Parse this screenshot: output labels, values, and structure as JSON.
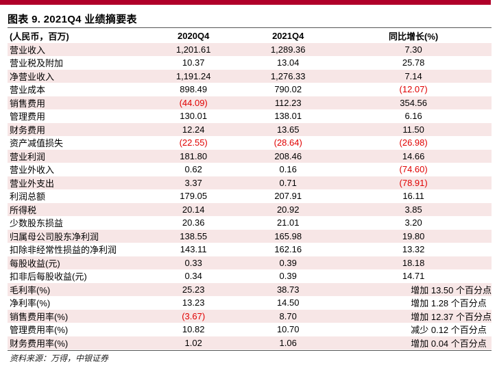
{
  "title": "图表 9. 2021Q4 业绩摘要表",
  "colors": {
    "brand": "#b0002a",
    "shade": "#f7e6e6",
    "negative": "#e00000"
  },
  "headers": [
    "(人民币，百万)",
    "2020Q4",
    "2021Q4",
    "同比增长(%)"
  ],
  "rows": [
    {
      "label": "营业收入",
      "v2020": "1,201.61",
      "v2021": "1,289.36",
      "growth": "7.30"
    },
    {
      "label": "营业税及附加",
      "v2020": "10.37",
      "v2021": "13.04",
      "growth": "25.78"
    },
    {
      "label": "净营业收入",
      "v2020": "1,191.24",
      "v2021": "1,276.33",
      "growth": "7.14"
    },
    {
      "label": "营业成本",
      "v2020": "898.49",
      "v2021": "790.02",
      "growth": "(12.07)"
    },
    {
      "label": "销售费用",
      "v2020": "(44.09)",
      "v2021": "112.23",
      "growth": "354.56"
    },
    {
      "label": "管理费用",
      "v2020": "130.01",
      "v2021": "138.01",
      "growth": "6.16"
    },
    {
      "label": "财务费用",
      "v2020": "12.24",
      "v2021": "13.65",
      "growth": "11.50"
    },
    {
      "label": "资产减值损失",
      "v2020": "(22.55)",
      "v2021": "(28.64)",
      "growth": "(26.98)"
    },
    {
      "label": "营业利润",
      "v2020": "181.80",
      "v2021": "208.46",
      "growth": "14.66"
    },
    {
      "label": "营业外收入",
      "v2020": "0.62",
      "v2021": "0.16",
      "growth": "(74.60)"
    },
    {
      "label": "营业外支出",
      "v2020": "3.37",
      "v2021": "0.71",
      "growth": "(78.91)"
    },
    {
      "label": "利润总额",
      "v2020": "179.05",
      "v2021": "207.91",
      "growth": "16.11"
    },
    {
      "label": "所得税",
      "v2020": "20.14",
      "v2021": "20.92",
      "growth": "3.85"
    },
    {
      "label": "少数股东损益",
      "v2020": "20.36",
      "v2021": "21.01",
      "growth": "3.20"
    },
    {
      "label": "归属母公司股东净利润",
      "v2020": "138.55",
      "v2021": "165.98",
      "growth": "19.80"
    },
    {
      "label": "扣除非经常性损益的净利润",
      "v2020": "143.11",
      "v2021": "162.16",
      "growth": "13.32"
    },
    {
      "label": "每股收益(元)",
      "v2020": "0.33",
      "v2021": "0.39",
      "growth": "18.18"
    },
    {
      "label": "扣非后每股收益(元)",
      "v2020": "0.34",
      "v2021": "0.39",
      "growth": "14.71"
    },
    {
      "label": "毛利率(%)",
      "v2020": "25.23",
      "v2021": "38.73",
      "growth": "增加 13.50 个百分点"
    },
    {
      "label": "净利率(%)",
      "v2020": "13.23",
      "v2021": "14.50",
      "growth": "增加 1.28 个百分点"
    },
    {
      "label": "销售费用率(%)",
      "v2020": "(3.67)",
      "v2021": "8.70",
      "growth": "增加 12.37 个百分点"
    },
    {
      "label": "管理费用率(%)",
      "v2020": "10.82",
      "v2021": "10.70",
      "growth": "减少 0.12 个百分点"
    },
    {
      "label": "财务费用率(%)",
      "v2020": "1.02",
      "v2021": "1.06",
      "growth": "增加 0.04 个百分点"
    }
  ],
  "source": "资料来源：万得，中银证券"
}
